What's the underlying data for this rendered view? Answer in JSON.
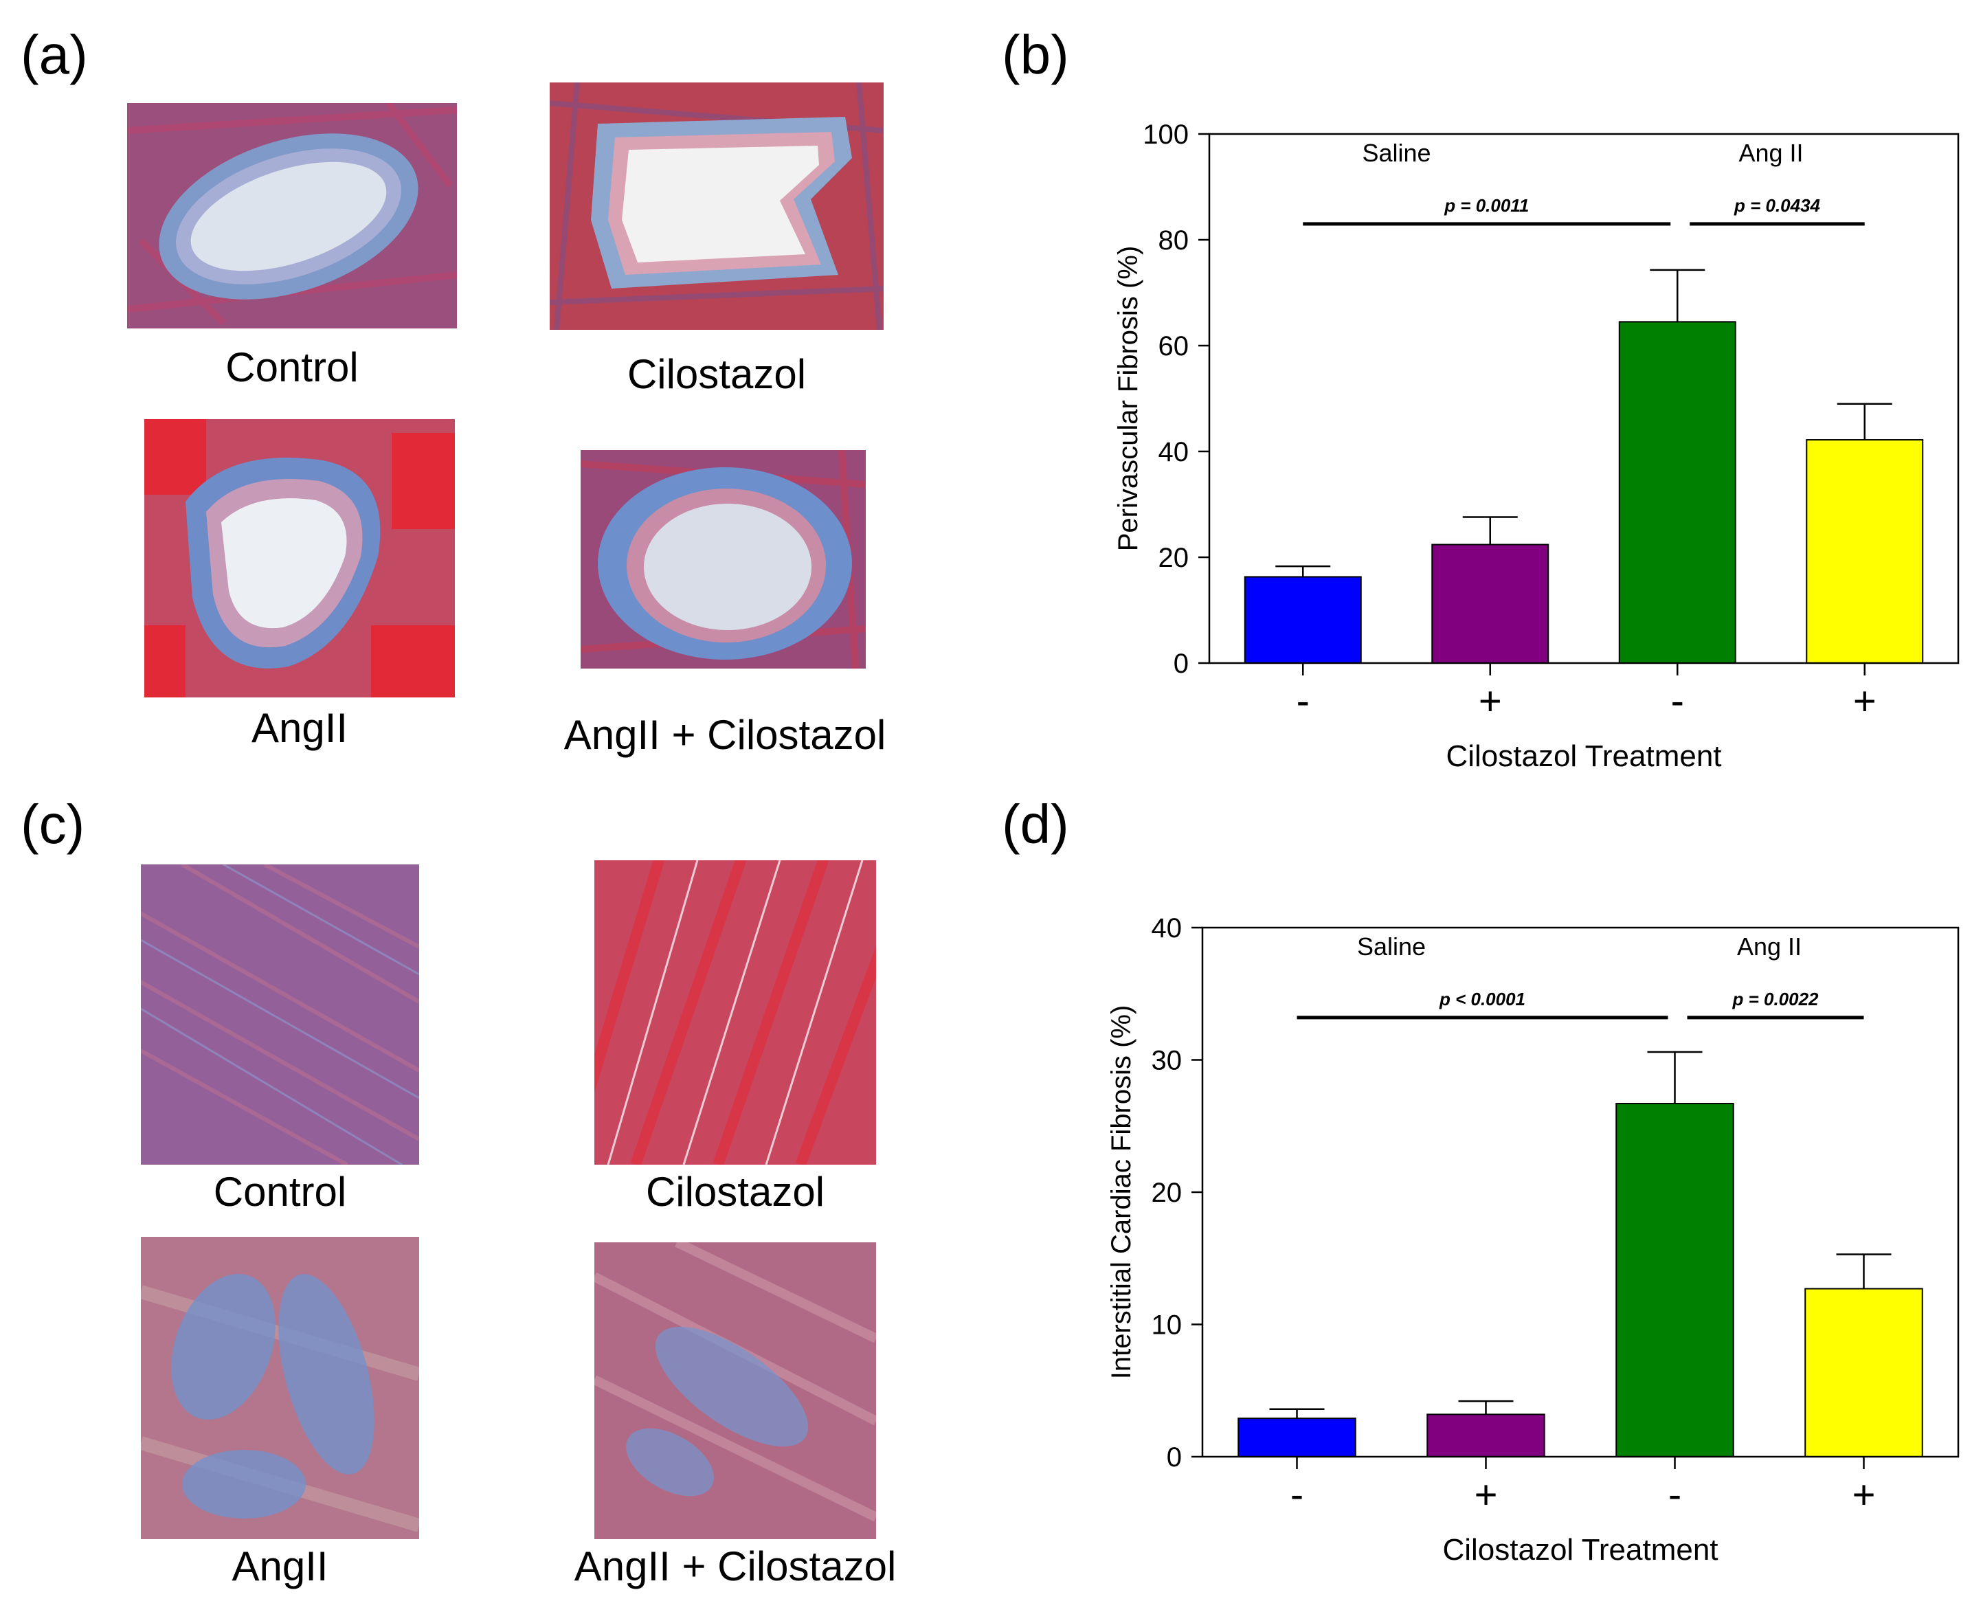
{
  "panels": {
    "a": {
      "label": "(a)",
      "captions": [
        "Control",
        "Cilostazol",
        "AngII",
        "AngII + Cilostazol"
      ]
    },
    "c": {
      "label": "(c)",
      "captions": [
        "Control",
        "Cilostazol",
        "AngII",
        "AngII + Cilostazol"
      ]
    },
    "b": {
      "label": "(b)"
    },
    "d": {
      "label": "(d)"
    }
  },
  "chart_data": [
    {
      "panel": "b",
      "type": "bar",
      "categories": [
        "-",
        "+",
        "-",
        "+"
      ],
      "values": [
        16.3,
        22.4,
        64.5,
        42.2
      ],
      "errors": [
        2.0,
        5.2,
        9.8,
        6.8
      ],
      "colors": [
        "#0000ff",
        "#800080",
        "#008000",
        "#ffff00"
      ],
      "groups": [
        "Saline",
        "Ang II"
      ],
      "xlabel": "Cilostazol Treatment",
      "ylabel": "Perivascular Fibrosis (%)",
      "ylim": [
        0,
        100
      ],
      "yticks": [
        0,
        20,
        40,
        60,
        80,
        100
      ],
      "significance": [
        {
          "from": 0,
          "to": 2,
          "label": "p = 0.0011",
          "level": 83
        },
        {
          "from": 2,
          "to": 3,
          "label": "p = 0.0434",
          "level": 83
        }
      ]
    },
    {
      "panel": "d",
      "type": "bar",
      "categories": [
        "-",
        "+",
        "-",
        "+"
      ],
      "values": [
        2.9,
        3.2,
        26.7,
        12.7
      ],
      "errors": [
        0.7,
        1.0,
        3.9,
        2.6
      ],
      "colors": [
        "#0000ff",
        "#800080",
        "#008000",
        "#ffff00"
      ],
      "groups": [
        "Saline",
        "Ang II"
      ],
      "xlabel": "Cilostazol Treatment",
      "ylabel": "Interstitial Cardiac Fibrosis (%)",
      "ylim": [
        0,
        40
      ],
      "yticks": [
        0,
        10,
        20,
        30,
        40
      ],
      "significance": [
        {
          "from": 0,
          "to": 2,
          "label": "p < 0.0001",
          "level": 33.2
        },
        {
          "from": 2,
          "to": 3,
          "label": "p = 0.0022",
          "level": 33.2
        }
      ]
    }
  ]
}
